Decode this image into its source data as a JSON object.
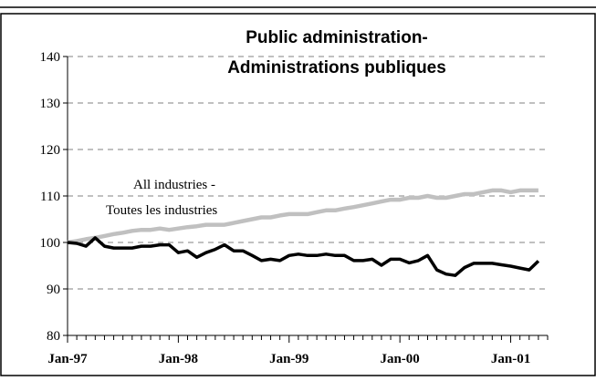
{
  "chart_data": {
    "type": "line",
    "title_line1": "Public administration-",
    "title_line2": "Administrations publiques",
    "annotation_line1": "All industries -",
    "annotation_line2": "Toutes les industries",
    "xlabel": "",
    "ylabel": "",
    "ylim": [
      80,
      140
    ],
    "yticks": [
      80,
      90,
      100,
      110,
      120,
      130,
      140
    ],
    "x_start": "Jan-97",
    "x_end": "Apr-01",
    "xtick_labels": [
      "Jan-97",
      "Jan-98",
      "Jan-99",
      "Jan-00",
      "Jan-01"
    ],
    "grid": "horizontal-dashed",
    "colors": {
      "public_administration": "#000000",
      "all_industries": "#c0c0c0",
      "grid": "#808080"
    },
    "series": [
      {
        "values": [
          100,
          99.8,
          99.2,
          101,
          99.2,
          98.8,
          98.8,
          98.8,
          99.2,
          99.2,
          99.5,
          99.5,
          97.8,
          98.2,
          96.8,
          97.8,
          98.5,
          99.5,
          98.2,
          98.2,
          97.2,
          96.1,
          96.4,
          96.1,
          97.2,
          97.5,
          97.2,
          97.2,
          97.5,
          97.2,
          97.2,
          96.1,
          96.1,
          96.4,
          95.1,
          96.4,
          96.4,
          95.6,
          96.1,
          97.2,
          94.1,
          93.2,
          92.9,
          94.6,
          95.5,
          95.5,
          95.5,
          95.2,
          94.9,
          94.5,
          94.1,
          96
        ]
      },
      {
        "values": [
          100,
          100.3,
          100.7,
          101,
          101.4,
          101.8,
          102.1,
          102.5,
          102.7,
          102.7,
          103,
          102.7,
          103,
          103.3,
          103.5,
          103.8,
          103.8,
          103.8,
          104.2,
          104.6,
          105,
          105.4,
          105.4,
          105.8,
          106.1,
          106.1,
          106.1,
          106.5,
          106.9,
          106.9,
          107.3,
          107.6,
          108,
          108.4,
          108.8,
          109.2,
          109.2,
          109.6,
          109.6,
          110,
          109.6,
          109.6,
          110,
          110.4,
          110.4,
          110.8,
          111.2,
          111.2,
          110.8,
          111.2,
          111.2,
          111.2
        ]
      }
    ]
  }
}
